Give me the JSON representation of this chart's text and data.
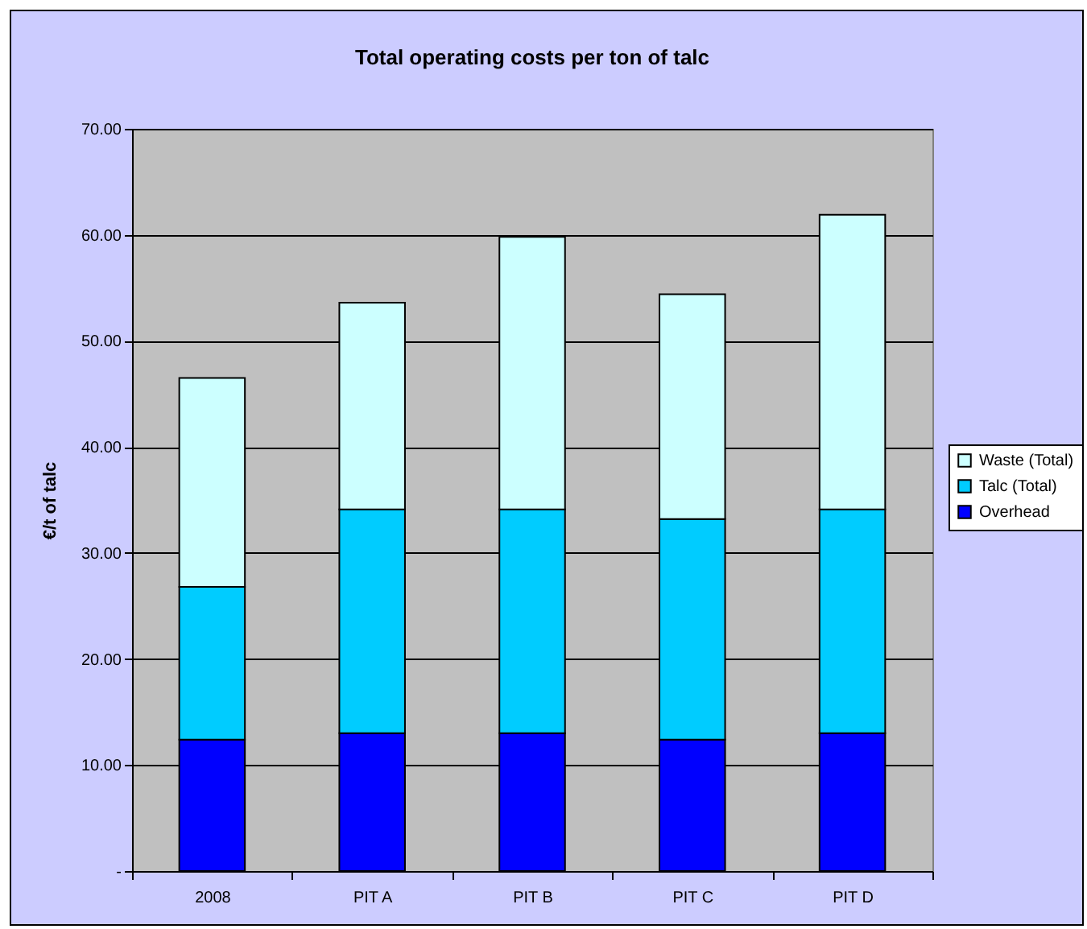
{
  "chart_data": {
    "type": "bar",
    "title": "Total operating costs per ton of talc",
    "ylabel": "€/t of talc",
    "categories": [
      "2008",
      "PIT A",
      "PIT B",
      "PIT C",
      "PIT D"
    ],
    "stacked": true,
    "series": [
      {
        "name": "Overhead",
        "color": "#0000ff",
        "values": [
          12.4,
          13.0,
          13.0,
          12.4,
          13.0
        ]
      },
      {
        "name": "Talc (Total)",
        "color": "#00ccff",
        "values": [
          14.4,
          21.1,
          21.1,
          20.8,
          21.1
        ]
      },
      {
        "name": "Waste (Total)",
        "color": "#ccffff",
        "values": [
          19.7,
          19.5,
          25.7,
          21.2,
          27.8
        ]
      }
    ],
    "ylim": [
      0,
      70
    ],
    "yticks": [
      {
        "value": 0,
        "label": "-"
      },
      {
        "value": 10,
        "label": "10.00"
      },
      {
        "value": 20,
        "label": "20.00"
      },
      {
        "value": 30,
        "label": "30.00"
      },
      {
        "value": 40,
        "label": "40.00"
      },
      {
        "value": 50,
        "label": "50.00"
      },
      {
        "value": 60,
        "label": "60.00"
      },
      {
        "value": 70,
        "label": "70.00"
      }
    ],
    "grid": "y",
    "legend": "right"
  }
}
